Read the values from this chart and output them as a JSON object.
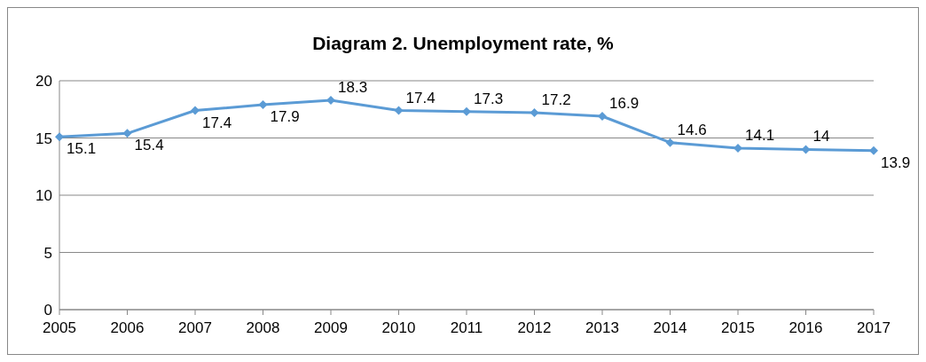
{
  "chart_data": {
    "type": "line",
    "title": "Diagram 2. Unemployment rate, %",
    "categories": [
      "2005",
      "2006",
      "2007",
      "2008",
      "2009",
      "2010",
      "2011",
      "2012",
      "2013",
      "2014",
      "2015",
      "2016",
      "2017"
    ],
    "series": [
      {
        "color": "#5b9bd5",
        "values": [
          15.1,
          15.4,
          17.4,
          17.9,
          18.3,
          17.4,
          17.3,
          17.2,
          16.9,
          14.6,
          14.1,
          14,
          13.9
        ]
      }
    ],
    "ylim": [
      0,
      20
    ],
    "yticks": [
      0,
      5,
      10,
      15,
      20
    ],
    "grid": "y",
    "marker": "diamond",
    "line_style": "solid",
    "data_labels": true
  }
}
